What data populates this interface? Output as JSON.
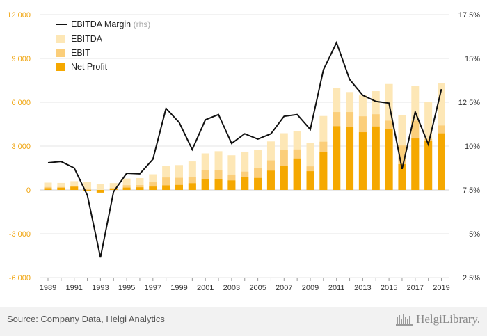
{
  "chart_data": {
    "type": "bar",
    "x": [
      1989,
      1990,
      1991,
      1992,
      1993,
      1994,
      1995,
      1996,
      1997,
      1998,
      1999,
      2000,
      2001,
      2002,
      2003,
      2004,
      2005,
      2006,
      2007,
      2008,
      2009,
      2010,
      2011,
      2012,
      2013,
      2014,
      2015,
      2016,
      2017,
      2018,
      2019
    ],
    "x_tick_labels": [
      "1989",
      "1991",
      "1993",
      "1995",
      "1997",
      "1999",
      "2001",
      "2003",
      "2005",
      "2007",
      "2009",
      "2011",
      "2013",
      "2015",
      "2017",
      "2019"
    ],
    "y_left": {
      "ylim": [
        -6000,
        12000
      ],
      "ticks": [
        -6000,
        -3000,
        0,
        3000,
        6000,
        9000,
        12000
      ],
      "tick_labels": [
        "-6 000",
        "-3 000",
        "0",
        "3 000",
        "6 000",
        "9 000",
        "12 000"
      ]
    },
    "y_right": {
      "ylim": [
        2.5,
        17.5
      ],
      "ticks": [
        2.5,
        5,
        7.5,
        10,
        12.5,
        15,
        17.5
      ],
      "tick_labels": [
        "2.5%",
        "5%",
        "7.5%",
        "10%",
        "12.5%",
        "15%",
        "17.5%"
      ]
    },
    "grid": true,
    "legend_position": "top-left",
    "series": [
      {
        "name": "EBITDA Margin",
        "name_suffix": "(rhs)",
        "kind": "line",
        "axis": "right",
        "color": "#111111",
        "values": [
          9.05,
          9.12,
          8.75,
          7.2,
          3.65,
          7.4,
          8.45,
          8.42,
          9.25,
          12.15,
          11.35,
          9.8,
          11.5,
          11.8,
          10.15,
          10.7,
          10.4,
          10.7,
          11.7,
          11.8,
          10.95,
          14.35,
          15.9,
          13.8,
          12.9,
          12.55,
          12.45,
          8.7,
          11.95,
          10.1,
          13.25
        ]
      },
      {
        "name": "EBITDA",
        "kind": "bar",
        "axis": "left",
        "color": "#fde7b6",
        "values": [
          500,
          480,
          600,
          560,
          420,
          470,
          780,
          810,
          1070,
          1650,
          1700,
          1950,
          2500,
          2650,
          2370,
          2620,
          2750,
          3320,
          3880,
          4000,
          3230,
          5060,
          7000,
          6700,
          6470,
          6760,
          7250,
          5130,
          7100,
          6040,
          7300
        ]
      },
      {
        "name": "EBIT",
        "kind": "bar",
        "axis": "left",
        "color": "#fbce7a",
        "values": [
          200,
          200,
          270,
          100,
          -230,
          130,
          320,
          330,
          520,
          850,
          830,
          890,
          1380,
          1380,
          1050,
          1250,
          1490,
          2020,
          2760,
          2770,
          1610,
          3300,
          5330,
          5330,
          5040,
          5180,
          4740,
          3040,
          4740,
          3490,
          4410
        ]
      },
      {
        "name": "Net Profit",
        "kind": "bar",
        "axis": "left",
        "color": "#f5a800",
        "values": [
          120,
          150,
          220,
          -90,
          -180,
          90,
          160,
          180,
          230,
          310,
          340,
          460,
          760,
          750,
          650,
          860,
          820,
          1320,
          1650,
          2150,
          1280,
          2600,
          4360,
          4290,
          3950,
          4340,
          4190,
          1760,
          3520,
          3370,
          3870
        ]
      }
    ]
  },
  "footer": {
    "source": "Source: Company Data, Helgi Analytics",
    "brand": "HelgiLibrary."
  }
}
